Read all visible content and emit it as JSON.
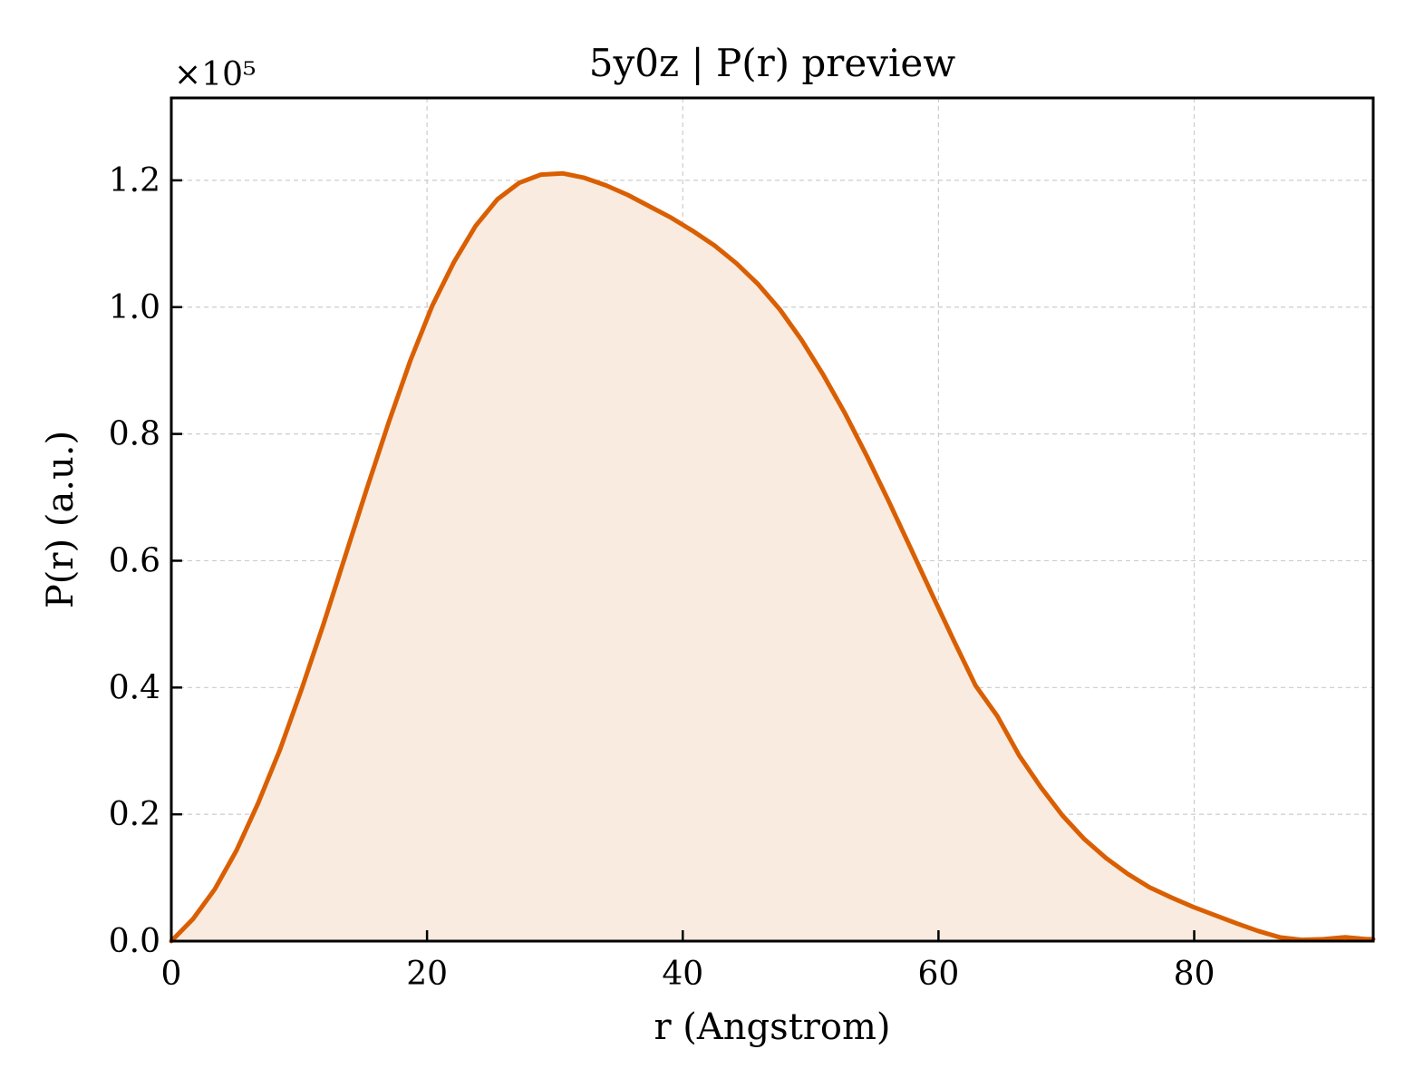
{
  "chart_data": {
    "type": "area",
    "title": "5y0z | P(r) preview",
    "xlabel": "r (Angstrom)",
    "ylabel": "P(r) (a.u.)",
    "y_multiplier_label": "×10⁵",
    "y_multiplier": 100000,
    "xlim": [
      0,
      94
    ],
    "ylim": [
      0,
      1.33
    ],
    "x_ticks": [
      0,
      20,
      40,
      60,
      80
    ],
    "x_tick_labels": [
      "0",
      "20",
      "40",
      "60",
      "80"
    ],
    "y_ticks": [
      0,
      0.2,
      0.4,
      0.6,
      0.8,
      1.0,
      1.2
    ],
    "y_tick_labels": [
      "0.0",
      "0.2",
      "0.4",
      "0.6",
      "0.8",
      "1.0",
      "1.2"
    ],
    "grid": true,
    "series": [
      {
        "color": "#d95f02",
        "fill_color": "#f9ebe0",
        "x": [
          0,
          1.7,
          3.4,
          5.1,
          6.8,
          8.5,
          10.2,
          11.9,
          13.6,
          15.3,
          17.0,
          18.7,
          20.4,
          22.1,
          23.8,
          25.5,
          27.2,
          28.9,
          30.6,
          32.3,
          34.0,
          35.7,
          37.4,
          39.1,
          40.8,
          42.5,
          44.2,
          45.9,
          47.6,
          49.3,
          51.0,
          52.7,
          54.4,
          56.1,
          57.8,
          59.5,
          61.2,
          62.9,
          64.6,
          66.3,
          68.0,
          69.7,
          71.4,
          73.1,
          74.8,
          76.5,
          78.2,
          79.9,
          81.6,
          83.3,
          85.0,
          86.7,
          88.4,
          90.1,
          91.8,
          93.5
        ],
        "y": [
          0.0,
          0.035,
          0.082,
          0.143,
          0.218,
          0.302,
          0.398,
          0.5,
          0.607,
          0.714,
          0.818,
          0.916,
          1.002,
          1.071,
          1.128,
          1.17,
          1.196,
          1.209,
          1.211,
          1.204,
          1.192,
          1.177,
          1.159,
          1.141,
          1.12,
          1.097,
          1.069,
          1.036,
          0.996,
          0.948,
          0.893,
          0.832,
          0.765,
          0.694,
          0.621,
          0.547,
          0.474,
          0.403,
          0.355,
          0.293,
          0.243,
          0.198,
          0.161,
          0.131,
          0.106,
          0.085,
          0.069,
          0.054,
          0.041,
          0.028,
          0.016,
          0.006,
          0.002,
          0.003,
          0.006,
          0.003
        ]
      }
    ]
  }
}
